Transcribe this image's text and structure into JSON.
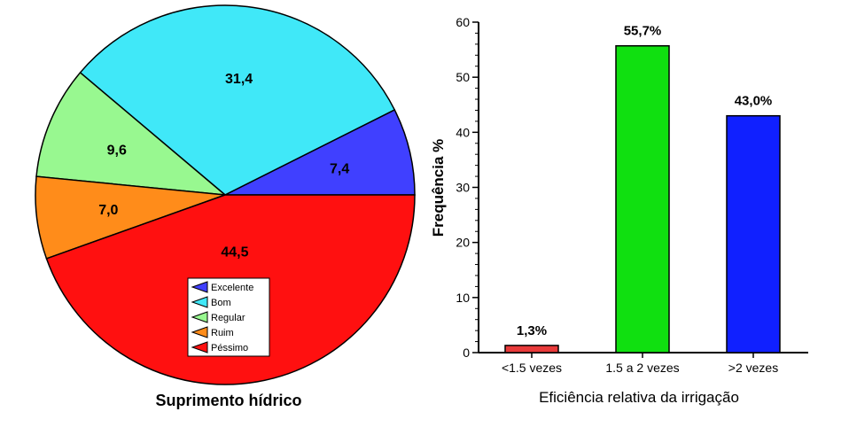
{
  "colors": {
    "excelente": "#4040ff",
    "bom": "#40e8f8",
    "regular": "#98f890",
    "ruim": "#ff8c1a",
    "pessimo": "#ff1010",
    "bar_low": "#e83a3a",
    "bar_mid": "#10e010",
    "bar_high": "#1020ff"
  },
  "chart_data": [
    {
      "type": "pie",
      "title": "Suprimento hídrico",
      "slices": [
        {
          "label": "Excelente",
          "value": 7.4,
          "text": "7,4",
          "color_key": "excelente"
        },
        {
          "label": "Bom",
          "value": 31.4,
          "text": "31,4",
          "color_key": "bom"
        },
        {
          "label": "Regular",
          "value": 9.6,
          "text": "9,6",
          "color_key": "regular"
        },
        {
          "label": "Ruim",
          "value": 7.0,
          "text": "7,0",
          "color_key": "ruim"
        },
        {
          "label": "Péssimo",
          "value": 44.5,
          "text": "44,5",
          "color_key": "pessimo"
        }
      ],
      "legend_position": "bottom-center"
    },
    {
      "type": "bar",
      "title": "",
      "xlabel": "Eficiência relativa da irrigação",
      "ylabel": "Frequência %",
      "categories": [
        "<1.5 vezes",
        "1.5 a 2 vezes",
        ">2 vezes"
      ],
      "values": [
        1.3,
        55.7,
        43.0
      ],
      "data_labels": [
        "1,3%",
        "55,7%",
        "43,0%"
      ],
      "bar_color_keys": [
        "bar_low",
        "bar_mid",
        "bar_high"
      ],
      "ylim": [
        0,
        60
      ],
      "yticks": [
        0,
        10,
        20,
        30,
        40,
        50,
        60
      ],
      "grid": false
    }
  ]
}
